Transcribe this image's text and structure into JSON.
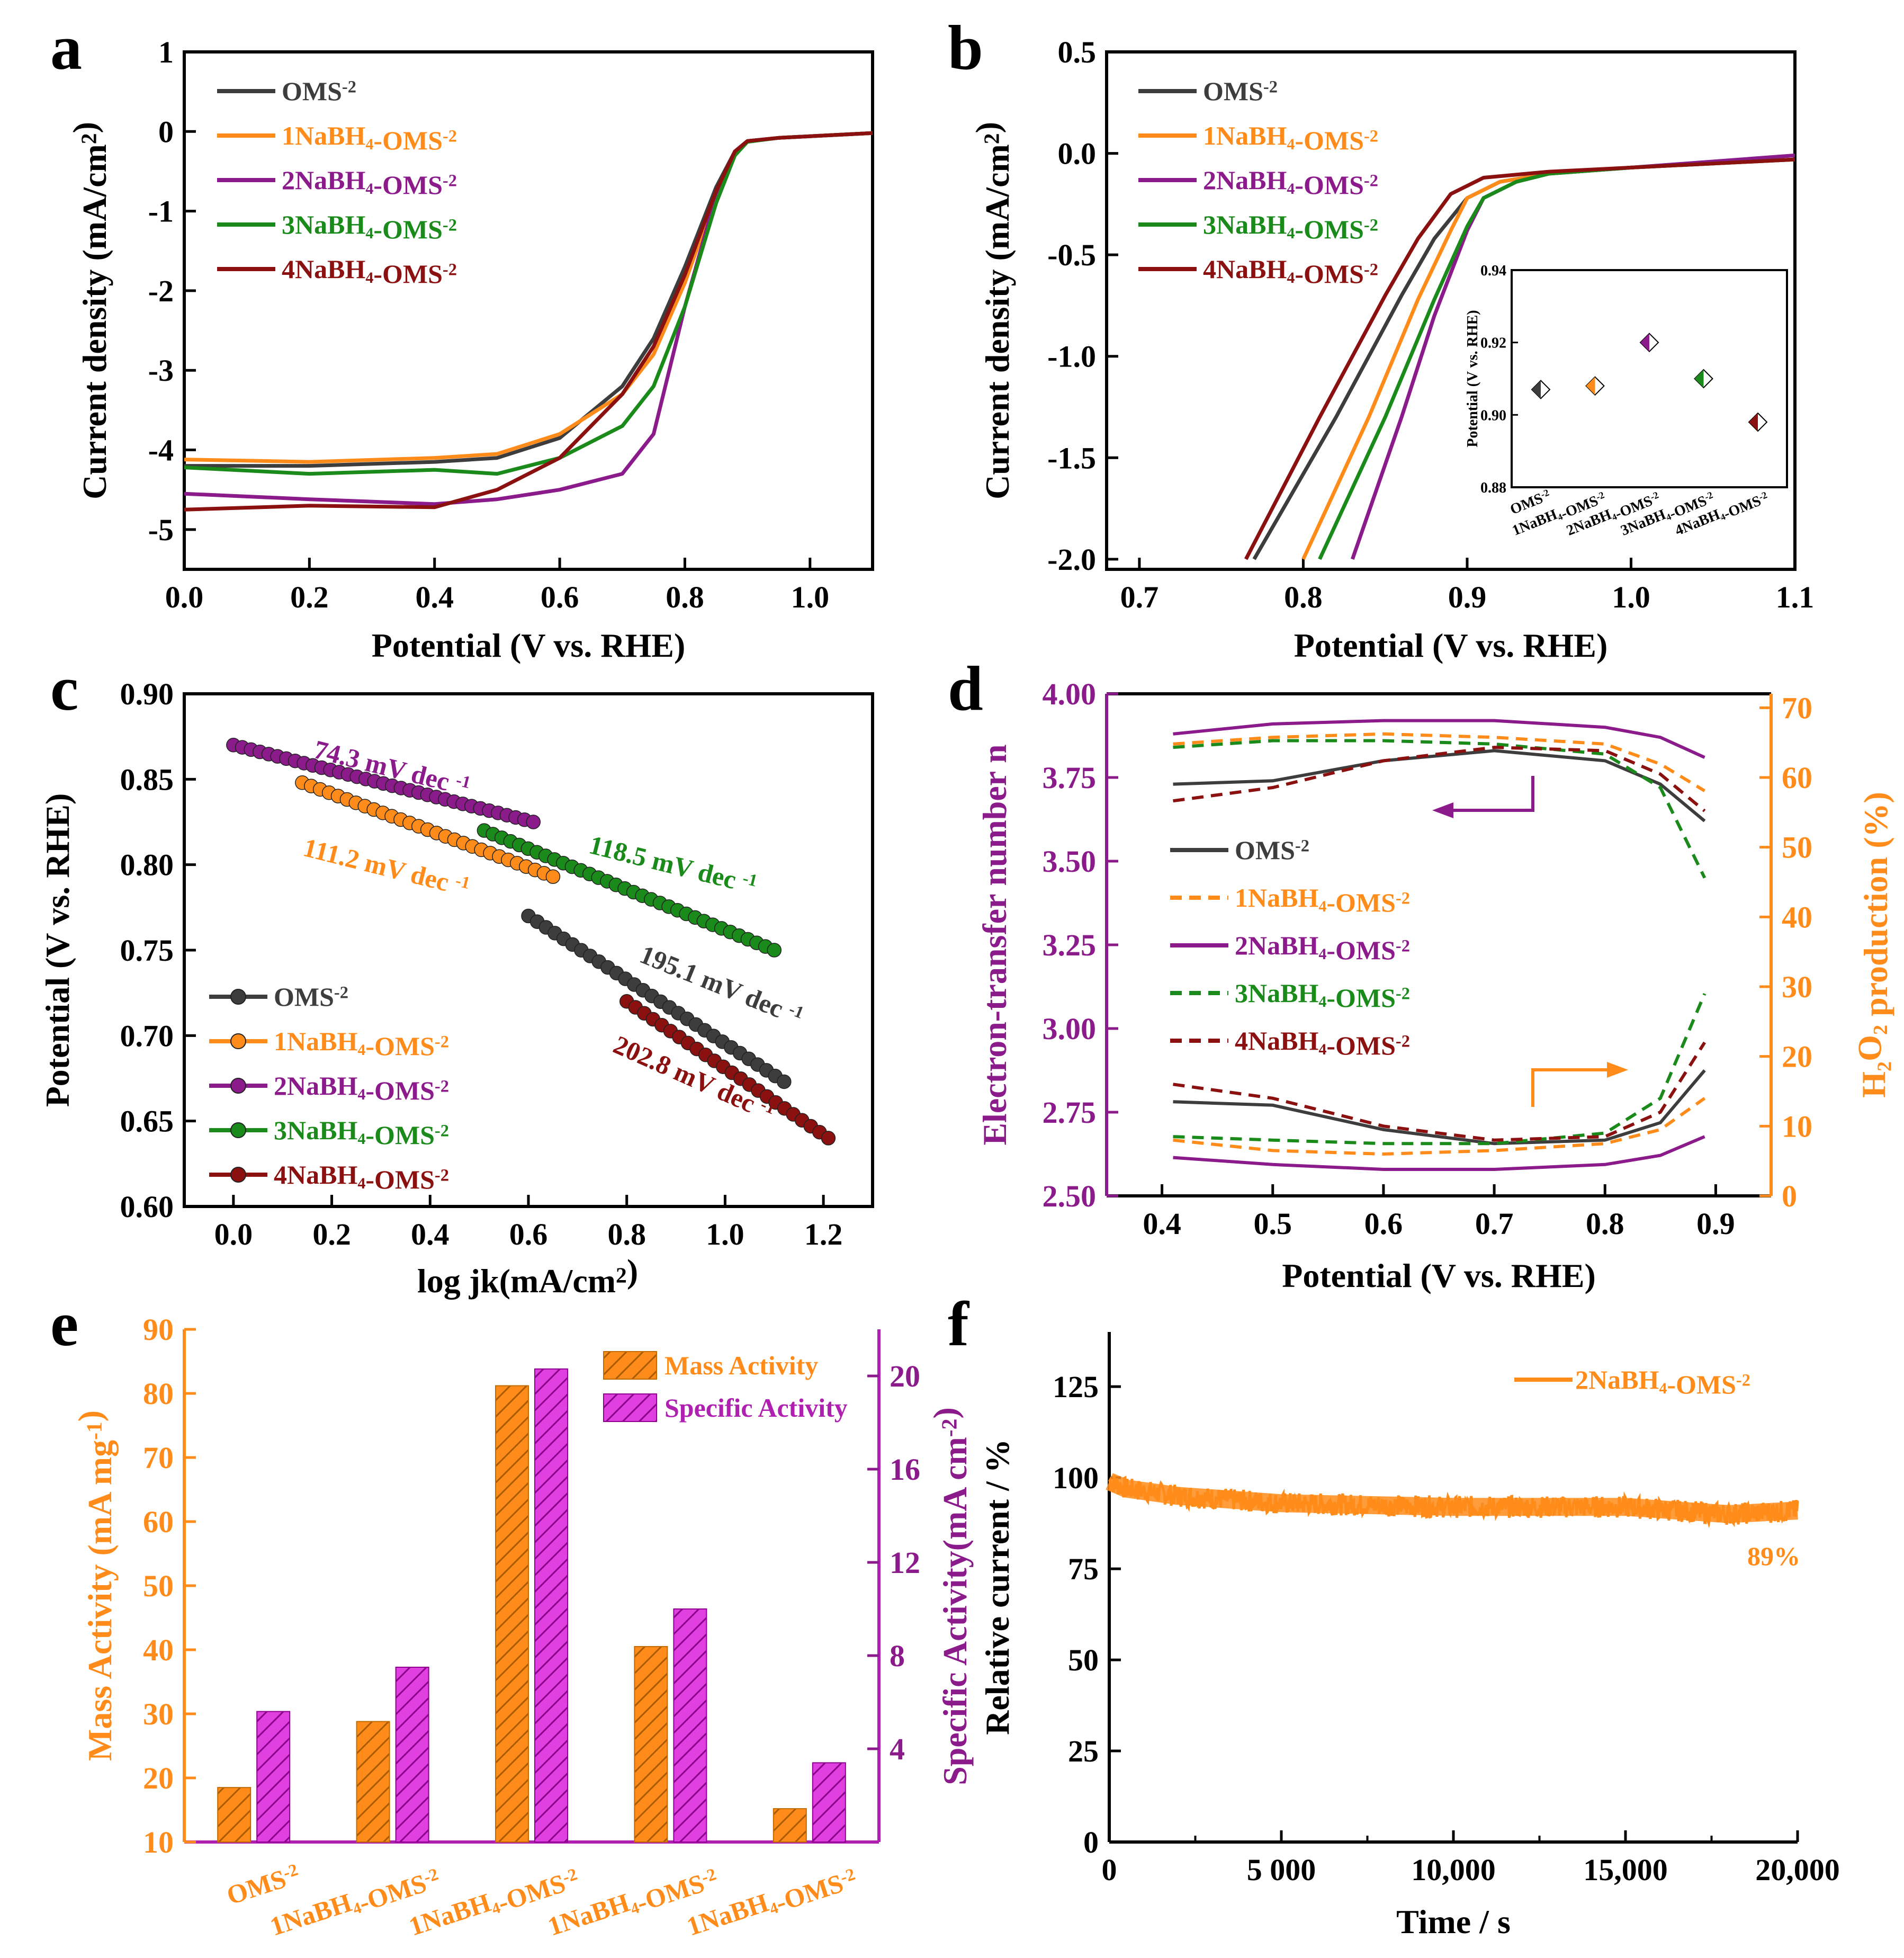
{
  "colors": {
    "OMS-2": "#3d3d3d",
    "1NaBH4-OMS-2": "#ff8c1a",
    "2NaBH4-OMS-2": "#8b1a8b",
    "3NaBH4-OMS-2": "#1a8a1a",
    "4NaBH4-OMS-2": "#8b1010",
    "mass": "#ff8c1a",
    "specific": "#b020b0",
    "orange_axis": "#ff8c1a",
    "purple_axis": "#8b1a8b"
  },
  "chart_data": [
    {
      "panel": "a",
      "type": "line",
      "xlabel": "Potential (V vs. RHE)",
      "ylabel": "Current density (mA/cm²)",
      "xlim": [
        0.0,
        1.1
      ],
      "ylim": [
        -5.5,
        1.0
      ],
      "xticks": [
        "0.0",
        "0.2",
        "0.4",
        "0.6",
        "0.8",
        "1.0"
      ],
      "yticks": [
        "1",
        "0",
        "-1",
        "-2",
        "-3",
        "-4",
        "-5"
      ],
      "legend": [
        "OMS-2",
        "1NaBH4-OMS-2",
        "2NaBH4-OMS-2",
        "3NaBH4-OMS-2",
        "4NaBH4-OMS-2"
      ],
      "series": [
        {
          "name": "OMS-2",
          "x": [
            0.0,
            0.2,
            0.4,
            0.5,
            0.6,
            0.7,
            0.75,
            0.8,
            0.85,
            0.88,
            0.9,
            0.95,
            1.0,
            1.1
          ],
          "y": [
            -4.2,
            -4.2,
            -4.15,
            -4.1,
            -3.85,
            -3.2,
            -2.6,
            -1.7,
            -0.7,
            -0.25,
            -0.12,
            -0.08,
            -0.06,
            -0.02
          ]
        },
        {
          "name": "1NaBH4-OMS-2",
          "x": [
            0.0,
            0.2,
            0.4,
            0.5,
            0.6,
            0.7,
            0.75,
            0.8,
            0.85,
            0.88,
            0.9,
            0.95,
            1.0,
            1.1
          ],
          "y": [
            -4.12,
            -4.15,
            -4.1,
            -4.05,
            -3.8,
            -3.3,
            -2.8,
            -1.9,
            -0.8,
            -0.28,
            -0.12,
            -0.08,
            -0.06,
            -0.02
          ]
        },
        {
          "name": "2NaBH4-OMS-2",
          "x": [
            0.0,
            0.2,
            0.4,
            0.5,
            0.6,
            0.7,
            0.75,
            0.8,
            0.85,
            0.88,
            0.9,
            0.95,
            1.0,
            1.1
          ],
          "y": [
            -4.55,
            -4.62,
            -4.68,
            -4.62,
            -4.5,
            -4.3,
            -3.8,
            -2.2,
            -0.8,
            -0.25,
            -0.12,
            -0.08,
            -0.06,
            -0.02
          ]
        },
        {
          "name": "3NaBH4-OMS-2",
          "x": [
            0.0,
            0.2,
            0.4,
            0.5,
            0.6,
            0.7,
            0.75,
            0.8,
            0.85,
            0.88,
            0.9,
            0.95,
            1.0,
            1.1
          ],
          "y": [
            -4.22,
            -4.3,
            -4.25,
            -4.3,
            -4.1,
            -3.7,
            -3.2,
            -2.2,
            -0.9,
            -0.3,
            -0.13,
            -0.08,
            -0.06,
            -0.02
          ]
        },
        {
          "name": "4NaBH4-OMS-2",
          "x": [
            0.0,
            0.2,
            0.4,
            0.5,
            0.6,
            0.7,
            0.75,
            0.8,
            0.85,
            0.88,
            0.9,
            0.95,
            1.0,
            1.1
          ],
          "y": [
            -4.75,
            -4.7,
            -4.72,
            -4.5,
            -4.1,
            -3.3,
            -2.7,
            -1.8,
            -0.75,
            -0.25,
            -0.12,
            -0.08,
            -0.06,
            -0.02
          ]
        }
      ]
    },
    {
      "panel": "b",
      "type": "line",
      "xlabel": "Potential (V vs. RHE)",
      "ylabel": "Current density (mA/cm²)",
      "xlim": [
        0.68,
        1.1
      ],
      "ylim": [
        -2.05,
        0.5
      ],
      "xticks": [
        "0.7",
        "0.8",
        "0.9",
        "1.0",
        "1.1"
      ],
      "yticks": [
        "0.5",
        "0.0",
        "-0.5",
        "-1.0",
        "-1.5",
        "-2.0"
      ],
      "legend": [
        "OMS-2",
        "1NaBH4-OMS-2",
        "2NaBH4-OMS-2",
        "3NaBH4-OMS-2",
        "4NaBH4-OMS-2"
      ],
      "series": [
        {
          "name": "OMS-2",
          "x": [
            0.77,
            0.82,
            0.86,
            0.88,
            0.9,
            0.92,
            0.95,
            1.0,
            1.1
          ],
          "y": [
            -2.0,
            -1.3,
            -0.7,
            -0.42,
            -0.22,
            -0.14,
            -0.1,
            -0.07,
            -0.03
          ]
        },
        {
          "name": "1NaBH4-OMS-2",
          "x": [
            0.8,
            0.84,
            0.87,
            0.89,
            0.9,
            0.92,
            0.95,
            1.0,
            1.1
          ],
          "y": [
            -2.0,
            -1.3,
            -0.72,
            -0.38,
            -0.22,
            -0.14,
            -0.1,
            -0.07,
            -0.03
          ]
        },
        {
          "name": "2NaBH4-OMS-2",
          "x": [
            0.83,
            0.86,
            0.88,
            0.9,
            0.91,
            0.93,
            0.95,
            1.0,
            1.1
          ],
          "y": [
            -2.0,
            -1.3,
            -0.8,
            -0.38,
            -0.22,
            -0.14,
            -0.1,
            -0.07,
            -0.01
          ]
        },
        {
          "name": "3NaBH4-OMS-2",
          "x": [
            0.81,
            0.85,
            0.88,
            0.9,
            0.91,
            0.93,
            0.95,
            1.0,
            1.1
          ],
          "y": [
            -2.0,
            -1.3,
            -0.72,
            -0.36,
            -0.22,
            -0.14,
            -0.1,
            -0.07,
            -0.03
          ]
        },
        {
          "name": "4NaBH4-OMS-2",
          "x": [
            0.765,
            0.81,
            0.85,
            0.87,
            0.89,
            0.91,
            0.95,
            1.0,
            1.1
          ],
          "y": [
            -2.0,
            -1.3,
            -0.7,
            -0.42,
            -0.2,
            -0.12,
            -0.09,
            -0.07,
            -0.03
          ]
        }
      ],
      "inset": {
        "type": "scatter",
        "ylabel": "Potential (V vs. RHE)",
        "ylim": [
          0.88,
          0.94
        ],
        "yticks": [
          "0.94",
          "0.92",
          "0.90",
          "0.88"
        ],
        "categories": [
          "OMS-2",
          "1NaBH4-OMS-2",
          "2NaBH4-OMS-2",
          "3NaBH4-OMS-2",
          "4NaBH4-OMS-2"
        ],
        "values": [
          0.907,
          0.908,
          0.92,
          0.91,
          0.898
        ]
      }
    },
    {
      "panel": "c",
      "type": "scatter",
      "xlabel": "log jk(mA/cm²)",
      "ylabel": "Potential (V vs. RHE)",
      "xlim": [
        -0.1,
        1.3
      ],
      "ylim": [
        0.6,
        0.9
      ],
      "xticks": [
        "0.0",
        "0.2",
        "0.4",
        "0.6",
        "0.8",
        "1.0",
        "1.2"
      ],
      "yticks": [
        "0.90",
        "0.85",
        "0.80",
        "0.75",
        "0.70",
        "0.65",
        "0.60"
      ],
      "legend": [
        "OMS-2",
        "1NaBH4-OMS-2",
        "2NaBH4-OMS-2",
        "3NaBH4-OMS-2",
        "4NaBH4-OMS-2"
      ],
      "series": [
        {
          "name": "OMS-2",
          "x_start": 0.6,
          "x_end": 1.12,
          "y_start": 0.77,
          "y_end": 0.673,
          "slope_label": "195.1 mV dec -1"
        },
        {
          "name": "1NaBH4-OMS-2",
          "x_start": 0.14,
          "x_end": 0.65,
          "y_start": 0.848,
          "y_end": 0.793,
          "slope_label": "111.2 mV dec -1"
        },
        {
          "name": "2NaBH4-OMS-2",
          "x_start": 0.0,
          "x_end": 0.61,
          "y_start": 0.87,
          "y_end": 0.825,
          "slope_label": "74.3 mV dec -1"
        },
        {
          "name": "3NaBH4-OMS-2",
          "x_start": 0.51,
          "x_end": 1.1,
          "y_start": 0.82,
          "y_end": 0.75,
          "slope_label": "118.5 mV dec -1"
        },
        {
          "name": "4NaBH4-OMS-2",
          "x_start": 0.8,
          "x_end": 1.21,
          "y_start": 0.72,
          "y_end": 0.64,
          "slope_label": "202.8 mV dec -1"
        }
      ]
    },
    {
      "panel": "d",
      "type": "line",
      "xlabel": "Potential (V vs. RHE)",
      "ylabel_left": "Electron-transfer number n",
      "ylabel_right": "H2O2 production (%)",
      "xlim": [
        0.35,
        0.95
      ],
      "ylim_left": [
        2.5,
        4.0
      ],
      "ylim_right": [
        0,
        72
      ],
      "xticks": [
        "0.4",
        "0.5",
        "0.6",
        "0.7",
        "0.8",
        "0.9"
      ],
      "yticks_left": [
        "4.00",
        "3.75",
        "3.50",
        "3.25",
        "3.00",
        "2.75",
        "2.50"
      ],
      "yticks_right": [
        "70",
        "60",
        "50",
        "40",
        "30",
        "20",
        "10",
        "0"
      ],
      "legend": [
        "OMS-2",
        "1NaBH4-OMS-2",
        "2NaBH4-OMS-2",
        "3NaBH4-OMS-2",
        "4NaBH4-OMS-2"
      ],
      "series_n": [
        {
          "name": "OMS-2",
          "x": [
            0.41,
            0.5,
            0.6,
            0.7,
            0.8,
            0.85,
            0.89
          ],
          "y": [
            3.73,
            3.74,
            3.8,
            3.83,
            3.8,
            3.73,
            3.62
          ]
        },
        {
          "name": "1NaBH4-OMS-2",
          "x": [
            0.41,
            0.5,
            0.6,
            0.7,
            0.8,
            0.85,
            0.89
          ],
          "y": [
            3.85,
            3.87,
            3.88,
            3.87,
            3.85,
            3.79,
            3.71
          ]
        },
        {
          "name": "2NaBH4-OMS-2",
          "x": [
            0.41,
            0.5,
            0.6,
            0.7,
            0.8,
            0.85,
            0.89
          ],
          "y": [
            3.88,
            3.91,
            3.92,
            3.92,
            3.9,
            3.87,
            3.81
          ]
        },
        {
          "name": "3NaBH4-OMS-2",
          "x": [
            0.41,
            0.5,
            0.6,
            0.7,
            0.8,
            0.85,
            0.89
          ],
          "y": [
            3.84,
            3.86,
            3.86,
            3.85,
            3.82,
            3.72,
            3.45
          ]
        },
        {
          "name": "4NaBH4-OMS-2",
          "x": [
            0.41,
            0.5,
            0.6,
            0.7,
            0.8,
            0.85,
            0.89
          ],
          "y": [
            3.68,
            3.72,
            3.8,
            3.84,
            3.83,
            3.76,
            3.65
          ]
        }
      ],
      "series_h2o2": [
        {
          "name": "OMS-2",
          "x": [
            0.41,
            0.5,
            0.6,
            0.7,
            0.8,
            0.85,
            0.89
          ],
          "y": [
            13.5,
            13,
            9.5,
            7.5,
            8,
            10.5,
            18
          ]
        },
        {
          "name": "1NaBH4-OMS-2",
          "x": [
            0.41,
            0.5,
            0.6,
            0.7,
            0.8,
            0.85,
            0.89
          ],
          "y": [
            8,
            6.5,
            6,
            6.5,
            7.5,
            9.5,
            14
          ]
        },
        {
          "name": "2NaBH4-OMS-2",
          "x": [
            0.41,
            0.5,
            0.6,
            0.7,
            0.8,
            0.85,
            0.89
          ],
          "y": [
            5.5,
            4.5,
            3.8,
            3.8,
            4.5,
            5.8,
            8.5
          ]
        },
        {
          "name": "3NaBH4-OMS-2",
          "x": [
            0.41,
            0.5,
            0.6,
            0.7,
            0.8,
            0.85,
            0.89
          ],
          "y": [
            8.5,
            8,
            7.5,
            7.5,
            9,
            14,
            29
          ]
        },
        {
          "name": "4NaBH4-OMS-2",
          "x": [
            0.41,
            0.5,
            0.6,
            0.7,
            0.8,
            0.85,
            0.89
          ],
          "y": [
            16,
            14,
            10,
            8,
            8.5,
            12,
            22
          ]
        }
      ]
    },
    {
      "panel": "e",
      "type": "bar",
      "categories": [
        "OMS-2",
        "1NaBH4-OMS-2",
        "1NaBH4-OMS-2",
        "1NaBH4-OMS-2",
        "1NaBH4-OMS-2"
      ],
      "ylabel_left": "Mass Activity (mA mg-1)",
      "ylabel_right": "Specific Activity(mA cm-2)",
      "ylim_left": [
        10,
        90
      ],
      "ylim_right": [
        0,
        22
      ],
      "yticks_left": [
        "90",
        "80",
        "70",
        "60",
        "50",
        "40",
        "30",
        "20",
        "10"
      ],
      "yticks_right": [
        "20",
        "16",
        "12",
        "8",
        "4"
      ],
      "series": [
        {
          "name": "Mass Activity",
          "values": [
            18.5,
            28.8,
            81.2,
            40.5,
            15.2
          ]
        },
        {
          "name": "Specific Activity",
          "values": [
            5.6,
            7.5,
            20.3,
            10.0,
            3.4
          ]
        }
      ]
    },
    {
      "panel": "f",
      "type": "line",
      "xlabel": "Time / s",
      "ylabel": "Relative current / %",
      "xlim": [
        0,
        20000
      ],
      "ylim": [
        0,
        140
      ],
      "xticks": [
        "0",
        "5 000",
        "10,000",
        "15,000",
        "20,000"
      ],
      "yticks": [
        "125",
        "100",
        "75",
        "50",
        "25",
        "0"
      ],
      "annotation": "89%",
      "series": [
        {
          "name": "2NaBH4-OMS-2",
          "x": [
            0,
            500,
            2000,
            5000,
            10000,
            15000,
            18000,
            20000
          ],
          "y": [
            99,
            97,
            95,
            93,
            92,
            92,
            90,
            91
          ]
        }
      ]
    }
  ],
  "panels": {
    "a": "a",
    "b": "b",
    "c": "c",
    "d": "d",
    "e": "e",
    "f": "f"
  }
}
